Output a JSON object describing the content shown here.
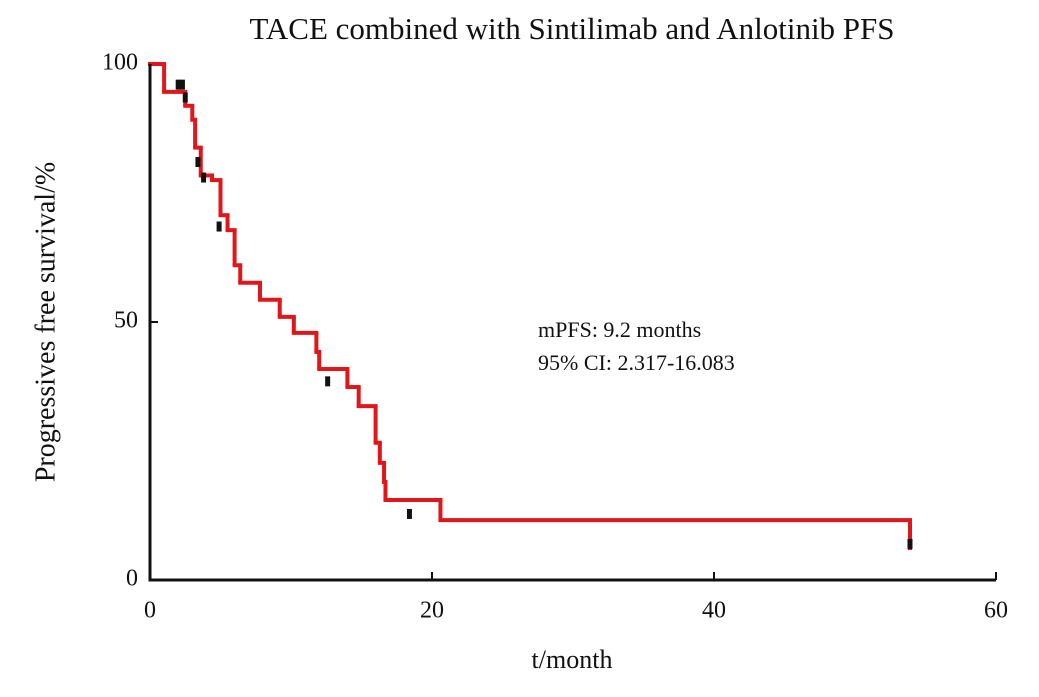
{
  "chart_data": {
    "type": "step",
    "title": "TACE combined with Sintilimab and Anlotinib PFS",
    "xlabel": "t/month",
    "ylabel": "Progressives free survival/%",
    "annotations": [
      "mPFS: 9.2 months",
      "95% CI: 2.317-16.083"
    ],
    "xlim": [
      0,
      60
    ],
    "xticks": [
      0,
      20,
      40,
      60
    ],
    "ylim": [
      0,
      100
    ],
    "yticks": [
      0,
      50,
      100
    ],
    "series": [
      {
        "color": "#e0161b",
        "x": [
          0,
          1.0,
          2.5,
          3.0,
          3.2,
          3.6,
          4.4,
          5.0,
          5.5,
          6.0,
          6.4,
          7.8,
          9.2,
          10.2,
          11.8,
          12.0,
          14.0,
          14.8,
          16.0,
          16.3,
          16.6,
          16.7,
          20.6,
          53.9
        ],
        "values": [
          100,
          94.6,
          91.9,
          89.2,
          83.8,
          78.4,
          77.5,
          70.7,
          67.8,
          61,
          57.6,
          54.3,
          51,
          47.9,
          44.2,
          40.9,
          37.4,
          33.7,
          26.6,
          22.7,
          19,
          15.5,
          11.6,
          5.8
        ]
      },
      {
        "color": "#111111",
        "x": [
          2.0,
          2.3,
          2.5,
          3.4,
          3.8,
          4.9,
          12.6,
          18.4,
          53.9
        ],
        "values": [
          96,
          96,
          93.5,
          81,
          78,
          68.5,
          38.5,
          12.8,
          7
        ]
      }
    ]
  }
}
